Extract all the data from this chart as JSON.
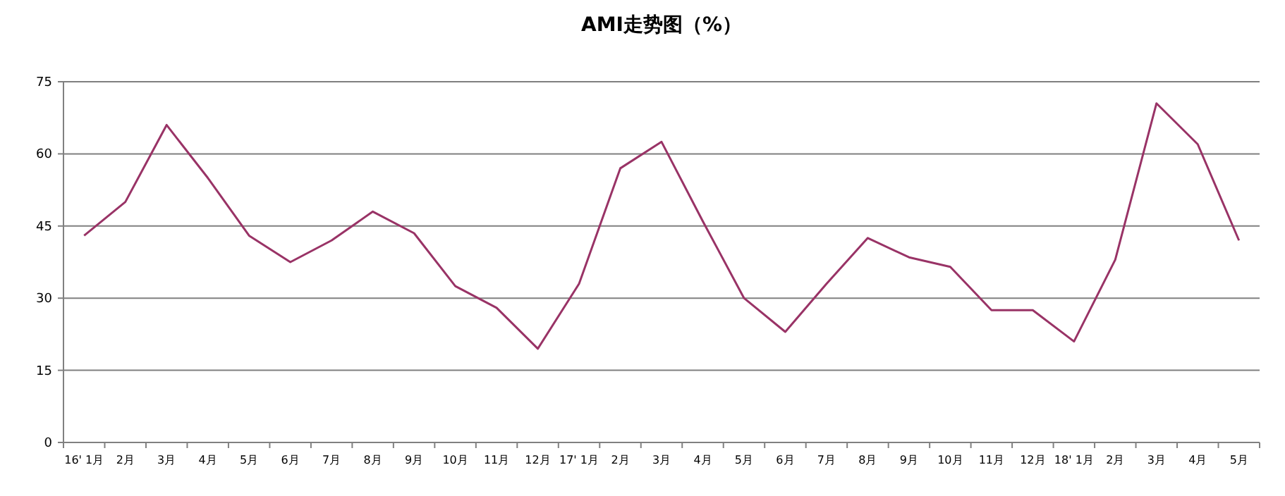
{
  "chart_data": {
    "type": "line",
    "title": "AMI走势图（%）",
    "categories": [
      "16' 1月",
      "2月",
      "3月",
      "4月",
      "5月",
      "6月",
      "7月",
      "8月",
      "9月",
      "10月",
      "11月",
      "12月",
      "17' 1月",
      "2月",
      "3月",
      "4月",
      "5月",
      "6月",
      "7月",
      "8月",
      "9月",
      "10月",
      "11月",
      "12月",
      "18' 1月",
      "2月",
      "3月",
      "4月",
      "5月"
    ],
    "series": [
      {
        "color": "#993366",
        "values": [
          43,
          50,
          66,
          55,
          43,
          37.5,
          42,
          48,
          43.5,
          32.5,
          28,
          19.5,
          33,
          57,
          62.5,
          46,
          30,
          23,
          33,
          42.5,
          38.5,
          36.5,
          27.5,
          27.5,
          21,
          38,
          70.5,
          62,
          42
        ]
      }
    ],
    "ylim": [
      0,
      75
    ],
    "yticks": [
      0,
      15,
      30,
      45,
      60,
      75
    ],
    "grid": "y",
    "marker": "none",
    "line_style": "solid"
  }
}
